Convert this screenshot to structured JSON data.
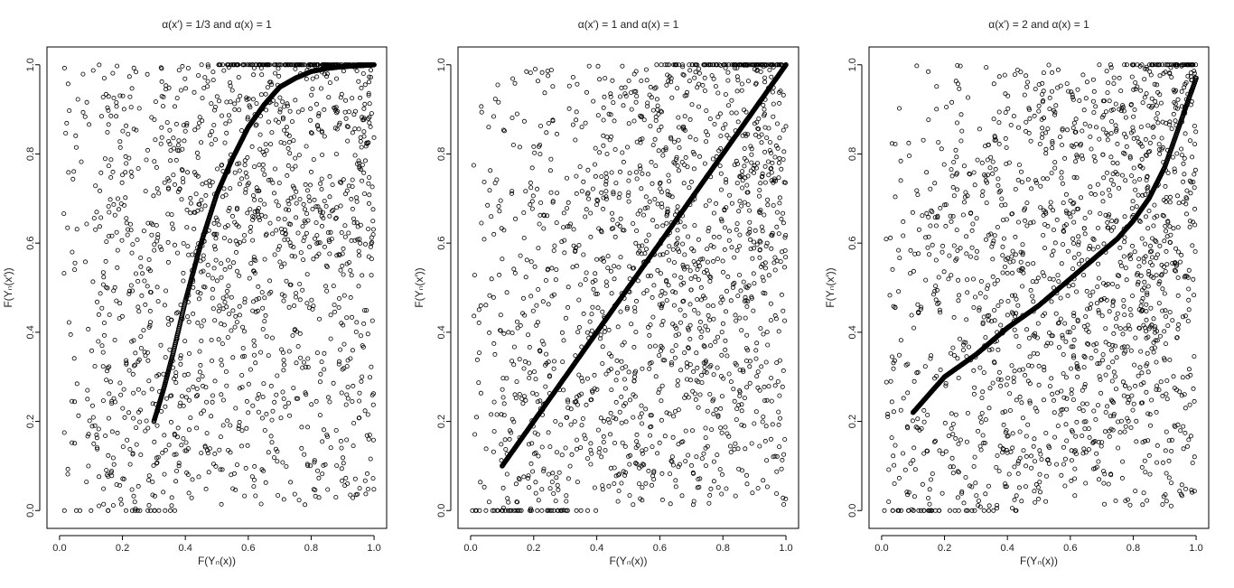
{
  "chart_data": [
    {
      "type": "scatter",
      "title": "α(x′) = 1/3 and α(x) = 1",
      "xlabel": "F(Yₙ(x))",
      "ylabel": "F(Yₙ(x′))",
      "xlim": [
        0,
        1
      ],
      "ylim": [
        0,
        1
      ],
      "xticks": [
        "0.0",
        "0.2",
        "0.4",
        "0.6",
        "0.8",
        "1.0"
      ],
      "yticks": [
        "0.0",
        "0.2",
        "0.4",
        "0.6",
        "0.8",
        "1.0"
      ],
      "grid": false,
      "legend": "none",
      "marker": "open-circle",
      "point_color": "#000000",
      "alpha_prime": 0.3333,
      "alpha": 1,
      "curve": {
        "x": [
          0.3,
          0.33,
          0.36,
          0.4,
          0.45,
          0.5,
          0.55,
          0.6,
          0.65,
          0.7,
          0.75,
          0.8,
          0.85,
          0.9,
          0.95,
          1.0
        ],
        "y": [
          0.2,
          0.27,
          0.35,
          0.47,
          0.6,
          0.71,
          0.79,
          0.86,
          0.91,
          0.95,
          0.97,
          0.985,
          0.992,
          0.996,
          0.998,
          1.0
        ]
      }
    },
    {
      "type": "scatter",
      "title": "α(x′) = 1 and α(x) = 1",
      "xlabel": "F(Yₙ(x))",
      "ylabel": "F(Yₙ(x′))",
      "xlim": [
        0,
        1
      ],
      "ylim": [
        0,
        1
      ],
      "xticks": [
        "0.0",
        "0.2",
        "0.4",
        "0.6",
        "0.8",
        "1.0"
      ],
      "yticks": [
        "0.0",
        "0.2",
        "0.4",
        "0.6",
        "0.8",
        "1.0"
      ],
      "grid": false,
      "legend": "none",
      "marker": "open-circle",
      "point_color": "#000000",
      "alpha_prime": 1,
      "alpha": 1,
      "curve": {
        "x": [
          0.1,
          0.2,
          0.3,
          0.4,
          0.5,
          0.6,
          0.7,
          0.8,
          0.9,
          1.0
        ],
        "y": [
          0.1,
          0.2,
          0.3,
          0.4,
          0.5,
          0.6,
          0.7,
          0.8,
          0.9,
          1.0
        ]
      }
    },
    {
      "type": "scatter",
      "title": "α(x′) = 2 and α(x) = 1",
      "xlabel": "F(Yₙ(x))",
      "ylabel": "F(Yₙ(x′))",
      "xlim": [
        0,
        1
      ],
      "ylim": [
        0,
        1
      ],
      "xticks": [
        "0.0",
        "0.2",
        "0.4",
        "0.6",
        "0.8",
        "1.0"
      ],
      "yticks": [
        "0.0",
        "0.2",
        "0.4",
        "0.6",
        "0.8",
        "1.0"
      ],
      "grid": false,
      "legend": "none",
      "marker": "open-circle",
      "point_color": "#000000",
      "alpha_prime": 2,
      "alpha": 1,
      "curve": {
        "x": [
          0.1,
          0.2,
          0.3,
          0.4,
          0.5,
          0.6,
          0.7,
          0.75,
          0.8,
          0.85,
          0.9,
          0.95,
          0.98,
          1.0
        ],
        "y": [
          0.22,
          0.3,
          0.35,
          0.41,
          0.46,
          0.52,
          0.58,
          0.61,
          0.65,
          0.7,
          0.77,
          0.87,
          0.93,
          0.97
        ]
      }
    }
  ]
}
